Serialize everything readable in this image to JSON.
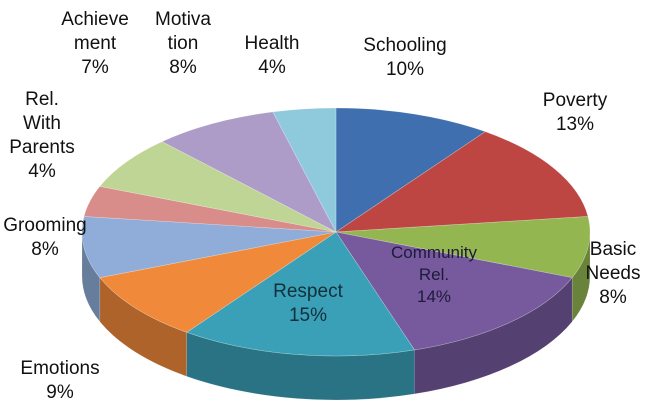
{
  "chart_data": {
    "type": "pie",
    "categories": [
      "Schooling",
      "Poverty",
      "Basic Needs",
      "Community Rel.",
      "Respect",
      "Emotions",
      "Grooming",
      "Rel. With Parents",
      "Achievement",
      "Motivation",
      "Health"
    ],
    "values": [
      10,
      13,
      8,
      14,
      15,
      9,
      8,
      4,
      7,
      8,
      4
    ],
    "value_labels": [
      "10%",
      "13%",
      "8%",
      "14%",
      "15%",
      "9%",
      "8%",
      "4%",
      "7%",
      "8%",
      "4%"
    ],
    "colors": [
      "#3f6fae",
      "#bd4643",
      "#93b650",
      "#765a9d",
      "#39a0b8",
      "#f08a3a",
      "#8fadd8",
      "#d98d8b",
      "#bfd595",
      "#ad9cc8",
      "#8fcadc"
    ]
  }
}
